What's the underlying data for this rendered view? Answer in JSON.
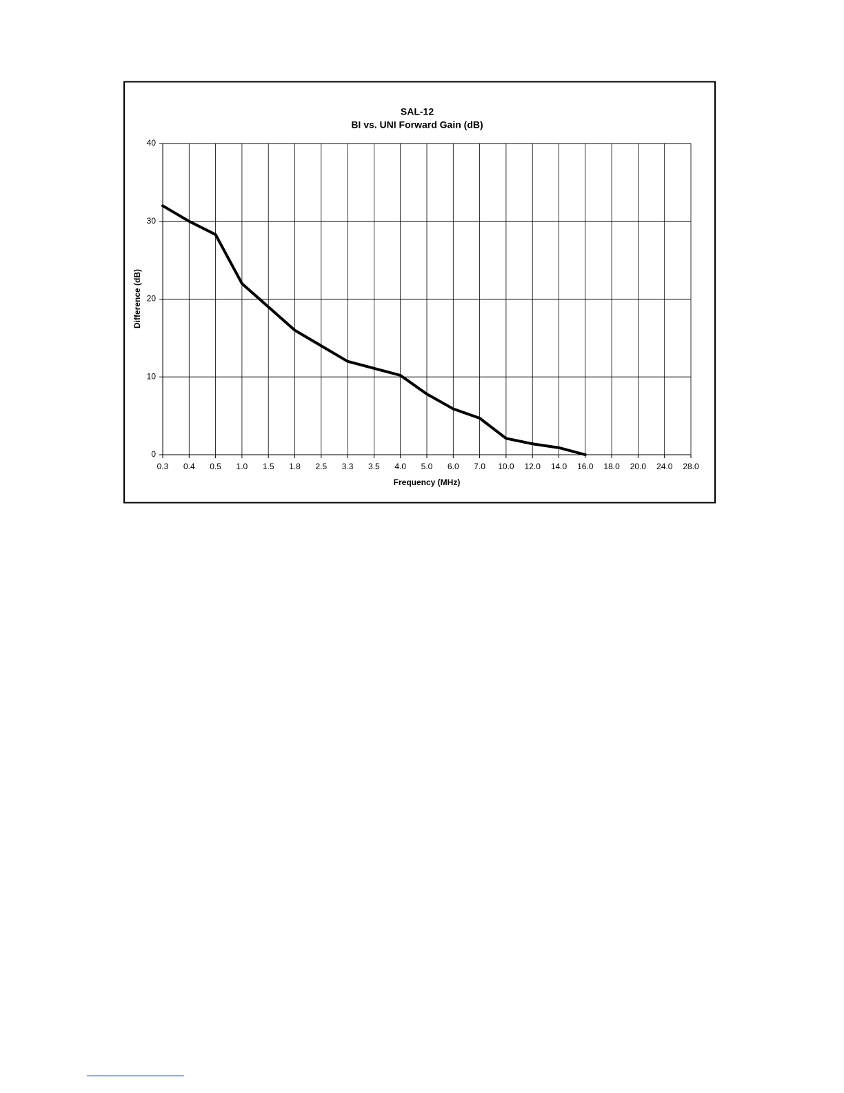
{
  "chart_data": {
    "type": "line",
    "title": "SAL-12",
    "subtitle": "BI vs. UNI Forward Gain (dB)",
    "x_label": "Frequency (MHz)",
    "y_label": "Difference (dB)",
    "categories": [
      "0.3",
      "0.4",
      "0.5",
      "1.0",
      "1.5",
      "1.8",
      "2.5",
      "3.3",
      "3.5",
      "4.0",
      "5.0",
      "6.0",
      "7.0",
      "10.0",
      "12.0",
      "14.0",
      "16.0",
      "18.0",
      "20.0",
      "24.0",
      "28.0"
    ],
    "series": [
      {
        "name": "Difference",
        "color": "#000000",
        "values": [
          32,
          30,
          28.3,
          22,
          19,
          16,
          14,
          12,
          11.1,
          10.2,
          7.8,
          5.9,
          4.7,
          2.1,
          1.4,
          0.9,
          0,
          null,
          null,
          null,
          null
        ]
      }
    ],
    "ylim": [
      0,
      40
    ],
    "yticks": [
      0,
      10,
      20,
      30,
      40
    ],
    "grid": true
  }
}
